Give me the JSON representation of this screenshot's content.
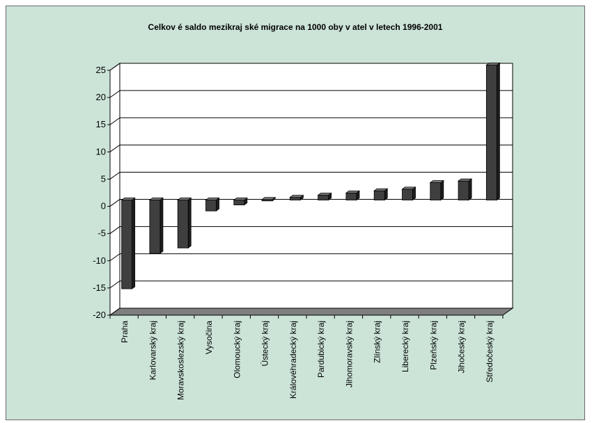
{
  "chart_data": {
    "type": "bar",
    "title": "Celkov é saldo mezikraj ské migrace na 1000 oby v atel v  letech 1996-2001",
    "xlabel": "",
    "ylabel": "",
    "categories": [
      "Praha",
      "Karlovarský kraj",
      "Moravskoslezský kraj",
      "Vysočina",
      "Olomoucký kraj",
      "Ústecký kraj",
      "Královéhradecký kraj",
      "Pardubický kraj",
      "Jihomoravský kraj",
      "Zlínský kraj",
      "Liberecký kraj",
      "Plzeňský kraj",
      "Jihočeský kraj",
      "Středočeský kraj"
    ],
    "values": [
      -16.3,
      -9.8,
      -8.8,
      -2.0,
      -0.9,
      0.1,
      0.5,
      0.9,
      1.3,
      1.7,
      2.0,
      3.2,
      3.5,
      24.8
    ],
    "ylim": [
      -20,
      25
    ],
    "yticks": [
      "25",
      "20",
      "15",
      "10",
      "5",
      "0",
      "-5",
      "-10",
      "-15",
      "-20"
    ],
    "grid": true,
    "colors": {
      "background": "#cce4d8",
      "bar_front": "#3f3f3f",
      "bar_top": "#7a7a7a",
      "bar_side": "#1e1e1e",
      "floor": "#7f7f7f"
    }
  }
}
